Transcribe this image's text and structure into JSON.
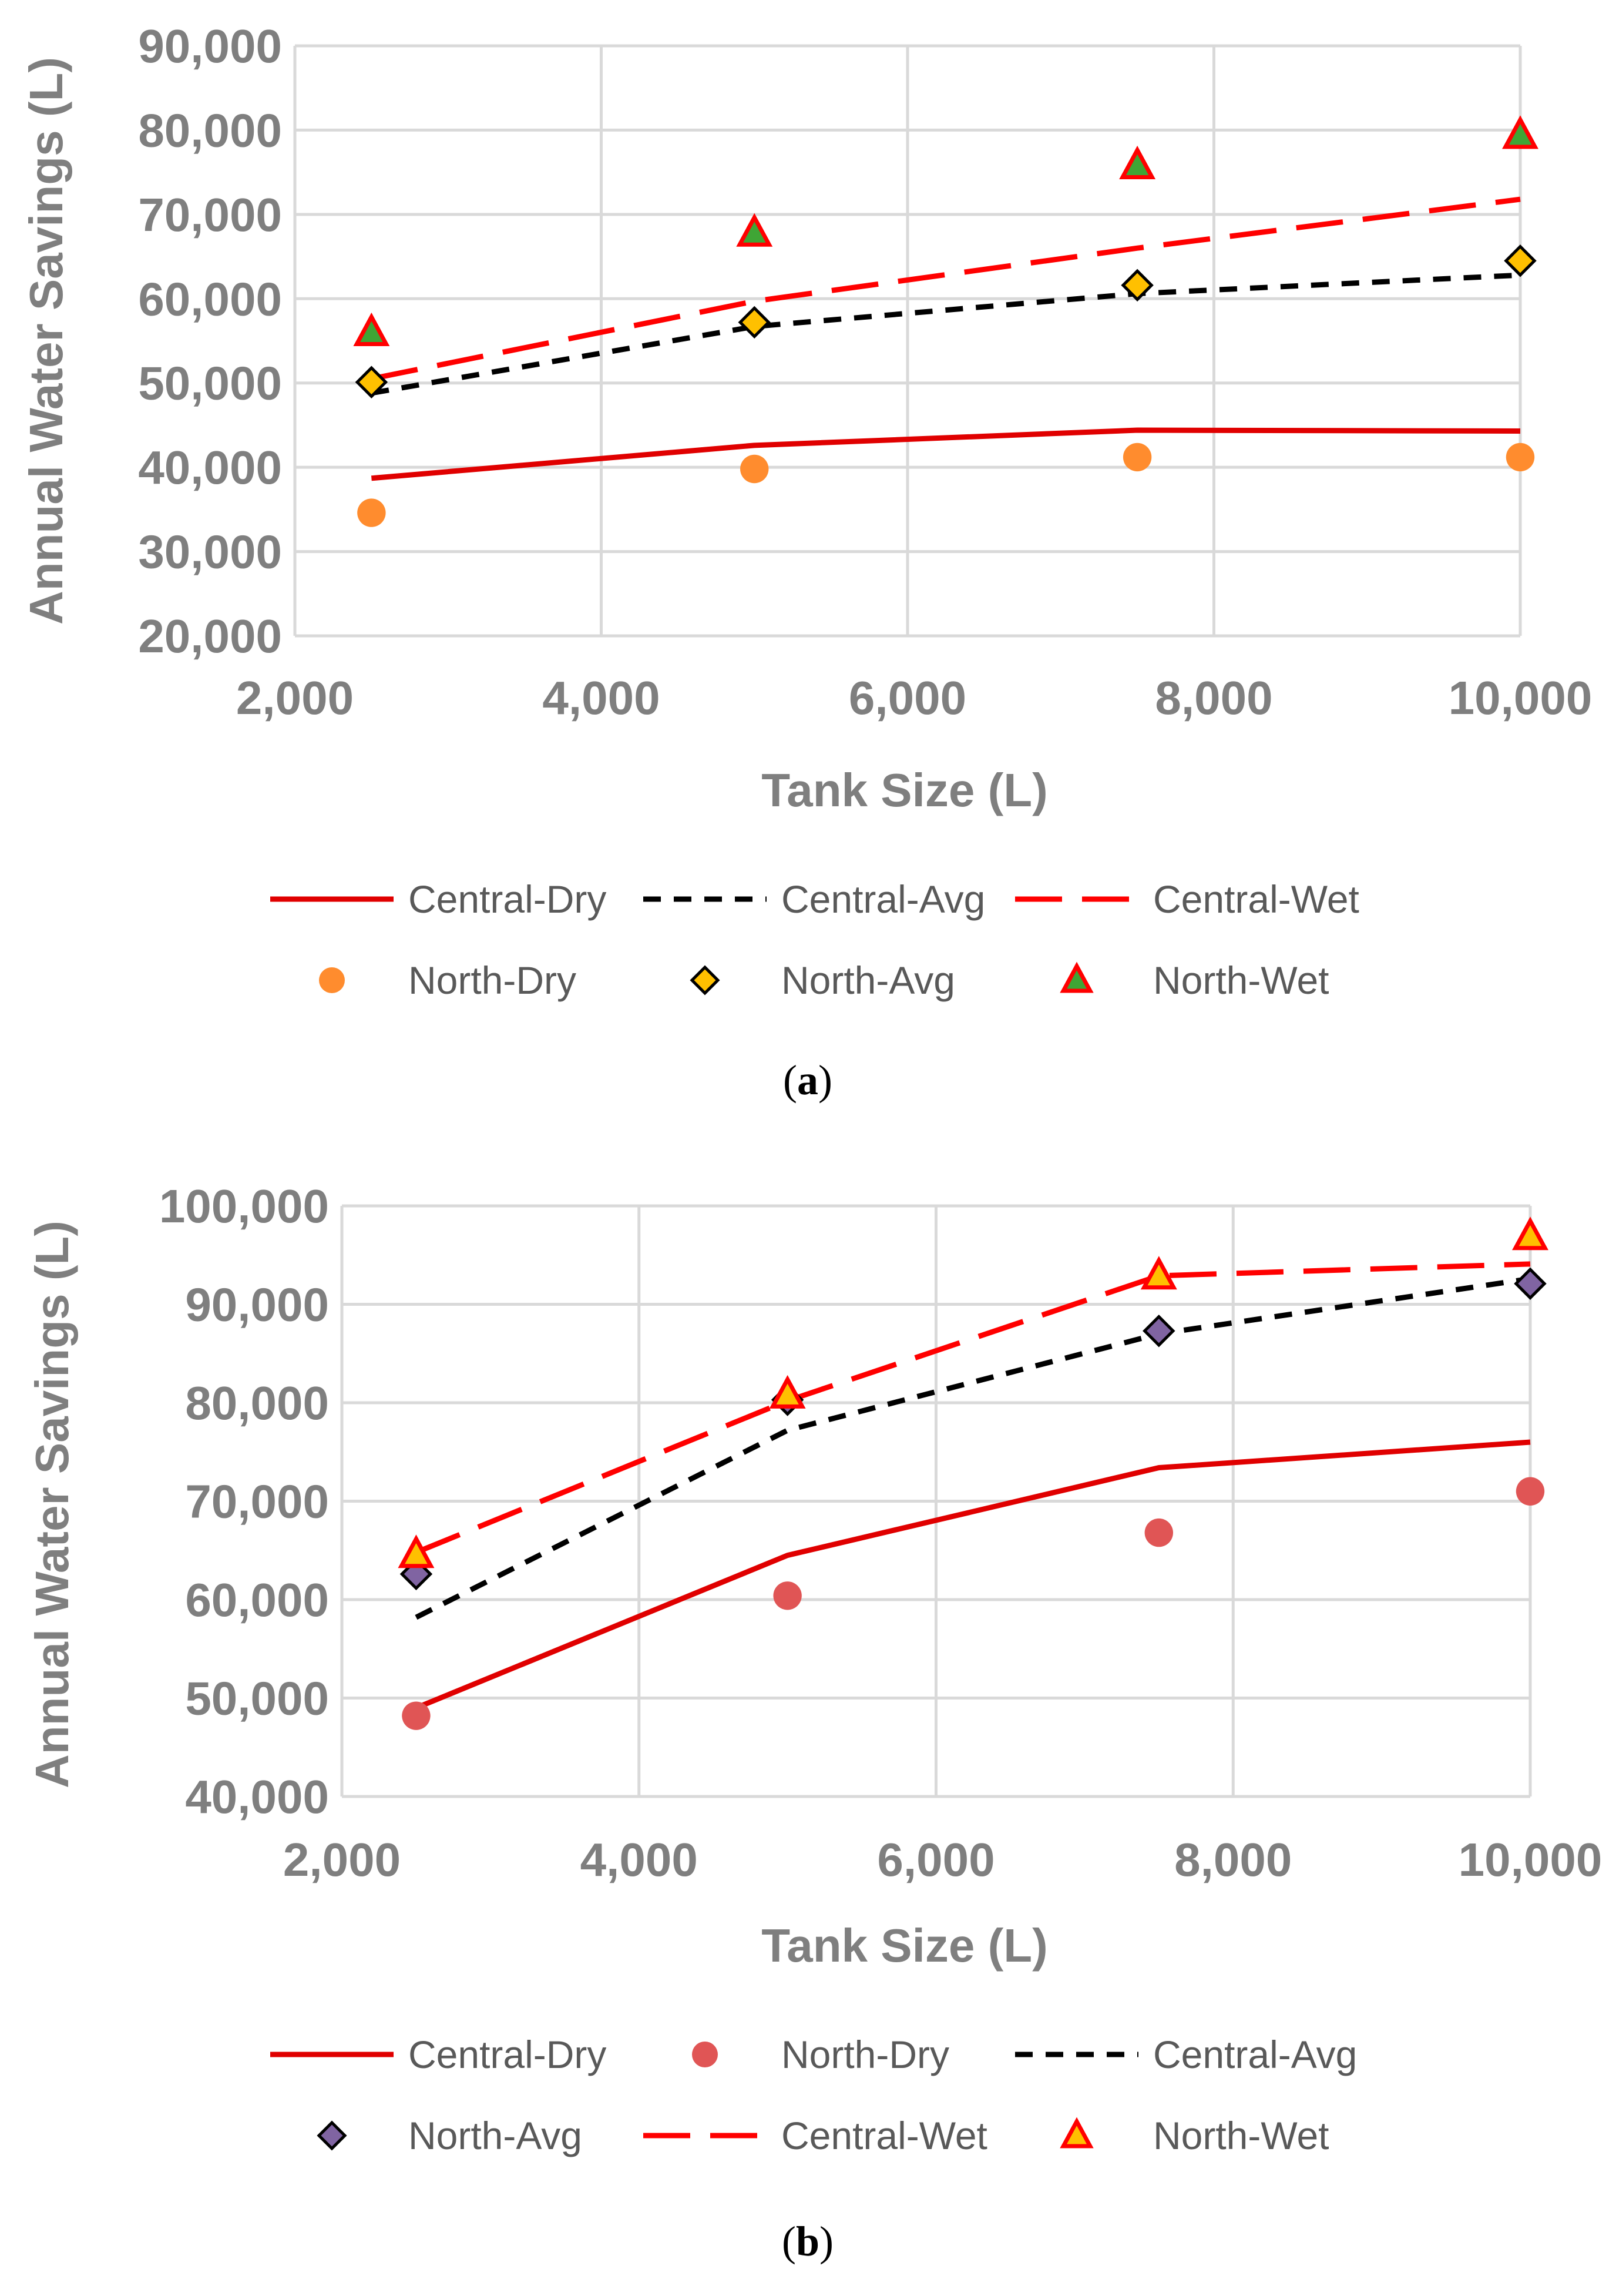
{
  "chart_data": [
    {
      "id": "a",
      "caption_letter": "a",
      "type": "line",
      "title": "",
      "xlabel": "Tank Size (L)",
      "ylabel": "Annual Water Savings (L)",
      "xlim": [
        2000,
        10000
      ],
      "ylim": [
        20000,
        90000
      ],
      "x_ticks": [
        2000,
        4000,
        6000,
        8000,
        10000
      ],
      "x_tick_labels": [
        "2,000",
        "4,000",
        "6,000",
        "8,000",
        "10,000"
      ],
      "y_ticks": [
        20000,
        30000,
        40000,
        50000,
        60000,
        70000,
        80000,
        90000
      ],
      "y_tick_labels": [
        "20,000",
        "30,000",
        "40,000",
        "50,000",
        "60,000",
        "70,000",
        "80,000",
        "90,000"
      ],
      "x": [
        2500,
        5000,
        7500,
        10000
      ],
      "legend_placement": "bottom",
      "legend": [
        "Central-Dry",
        "Central-Avg",
        "Central-Wet",
        "North-Dry",
        "North-Avg",
        "North-Wet"
      ],
      "series": [
        {
          "name": "Central-Dry",
          "kind": "line",
          "style": "solid",
          "color": "#e00000",
          "values": [
            38700,
            42600,
            44400,
            44300
          ]
        },
        {
          "name": "Central-Avg",
          "kind": "line",
          "style": "short-dash",
          "color": "#000000",
          "values": [
            48800,
            56700,
            60600,
            62800
          ]
        },
        {
          "name": "Central-Wet",
          "kind": "line",
          "style": "long-dash",
          "color": "#ff0000",
          "values": [
            50500,
            59700,
            66000,
            71800
          ]
        },
        {
          "name": "North-Dry",
          "kind": "marker",
          "marker": "circle",
          "color": "#ff8c2e",
          "edge": "none",
          "values": [
            34600,
            39800,
            41200,
            41200
          ]
        },
        {
          "name": "North-Avg",
          "kind": "marker",
          "marker": "diamond",
          "color": "#ffc000",
          "edge": "#000000",
          "values": [
            50100,
            57200,
            61600,
            64500
          ]
        },
        {
          "name": "North-Wet",
          "kind": "marker",
          "marker": "triangle",
          "color": "#3fa535",
          "edge": "#ff0000",
          "values": [
            56000,
            67800,
            75800,
            79400
          ]
        }
      ]
    },
    {
      "id": "b",
      "caption_letter": "b",
      "type": "line",
      "title": "",
      "xlabel": "Tank Size (L)",
      "ylabel": "Annual Water Savings (L)",
      "xlim": [
        2000,
        10000
      ],
      "ylim": [
        40000,
        100000
      ],
      "x_ticks": [
        2000,
        4000,
        6000,
        8000,
        10000
      ],
      "x_tick_labels": [
        "2,000",
        "4,000",
        "6,000",
        "8,000",
        "10,000"
      ],
      "y_ticks": [
        40000,
        50000,
        60000,
        70000,
        80000,
        90000,
        100000
      ],
      "y_tick_labels": [
        "40,000",
        "50,000",
        "60,000",
        "70,000",
        "80,000",
        "90,000",
        "100,000"
      ],
      "x": [
        2500,
        5000,
        7500,
        10000
      ],
      "legend_placement": "bottom",
      "legend": [
        "Central-Dry",
        "North-Dry",
        "Central-Avg",
        "North-Avg",
        "Central-Wet",
        "North-Wet"
      ],
      "series": [
        {
          "name": "Central-Dry",
          "kind": "line",
          "style": "solid",
          "color": "#e00000",
          "values": [
            49000,
            64500,
            73400,
            76000
          ]
        },
        {
          "name": "North-Dry",
          "kind": "marker",
          "marker": "circle",
          "color": "#e05555",
          "edge": "none",
          "values": [
            48200,
            60400,
            66800,
            71000
          ]
        },
        {
          "name": "Central-Avg",
          "kind": "line",
          "style": "short-dash",
          "color": "#000000",
          "values": [
            58200,
            77200,
            87000,
            92600
          ]
        },
        {
          "name": "North-Avg",
          "kind": "marker",
          "marker": "diamond",
          "color": "#8064a2",
          "edge": "#000000",
          "values": [
            62600,
            80300,
            87300,
            92100
          ]
        },
        {
          "name": "Central-Wet",
          "kind": "line",
          "style": "long-dash",
          "color": "#ff0000",
          "values": [
            64800,
            80200,
            92900,
            94100
          ]
        },
        {
          "name": "North-Wet",
          "kind": "marker",
          "marker": "triangle",
          "color": "#ffc000",
          "edge": "#ff0000",
          "values": [
            64600,
            80800,
            92900,
            96900
          ]
        }
      ]
    }
  ]
}
